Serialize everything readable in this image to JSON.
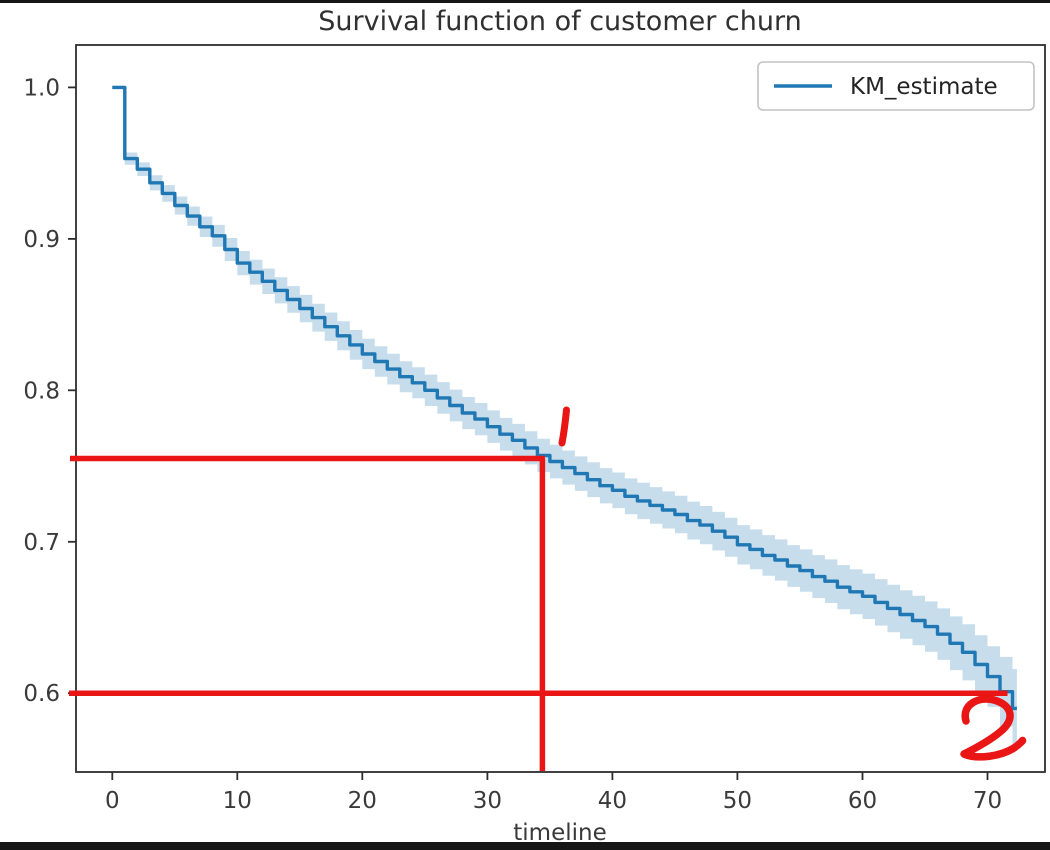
{
  "chart_data": {
    "type": "line",
    "title": "Survival function of customer churn",
    "xlabel": "timeline",
    "ylabel": "",
    "grid": false,
    "legend_position": "upper right",
    "legend": [
      {
        "label": "KM_estimate",
        "color": "#1f77b4"
      }
    ],
    "xlim": [
      -2.9,
      74.6
    ],
    "ylim": [
      0.548,
      1.028
    ],
    "x_ticks": [
      {
        "label": "0",
        "value": 0
      },
      {
        "label": "10",
        "value": 10
      },
      {
        "label": "20",
        "value": 20
      },
      {
        "label": "30",
        "value": 30
      },
      {
        "label": "40",
        "value": 40
      },
      {
        "label": "50",
        "value": 50
      },
      {
        "label": "60",
        "value": 60
      },
      {
        "label": "70",
        "value": 70
      }
    ],
    "y_ticks": [
      {
        "label": "1.0",
        "value": 1.0
      },
      {
        "label": "0.9",
        "value": 0.9
      },
      {
        "label": "0.8",
        "value": 0.8
      },
      {
        "label": "0.7",
        "value": 0.7
      },
      {
        "label": "0.6",
        "value": 0.6
      }
    ],
    "series": [
      {
        "name": "KM_estimate",
        "style": "step",
        "color": "#1f77b4",
        "ci_opacity": 0.25,
        "points": [
          [
            0,
            1.0
          ],
          [
            1,
            0.953
          ],
          [
            2,
            0.946
          ],
          [
            3,
            0.937
          ],
          [
            4,
            0.93
          ],
          [
            5,
            0.922
          ],
          [
            6,
            0.915
          ],
          [
            7,
            0.908
          ],
          [
            8,
            0.902
          ],
          [
            9,
            0.893
          ],
          [
            10,
            0.884
          ],
          [
            11,
            0.878
          ],
          [
            12,
            0.872
          ],
          [
            13,
            0.866
          ],
          [
            14,
            0.86
          ],
          [
            15,
            0.854
          ],
          [
            16,
            0.848
          ],
          [
            17,
            0.842
          ],
          [
            18,
            0.836
          ],
          [
            19,
            0.83
          ],
          [
            20,
            0.824
          ],
          [
            21,
            0.819
          ],
          [
            22,
            0.814
          ],
          [
            23,
            0.809
          ],
          [
            24,
            0.805
          ],
          [
            25,
            0.8
          ],
          [
            26,
            0.795
          ],
          [
            27,
            0.79
          ],
          [
            28,
            0.785
          ],
          [
            29,
            0.781
          ],
          [
            30,
            0.776
          ],
          [
            31,
            0.771
          ],
          [
            32,
            0.767
          ],
          [
            33,
            0.762
          ],
          [
            34,
            0.757
          ],
          [
            35,
            0.753
          ],
          [
            36,
            0.749
          ],
          [
            37,
            0.745
          ],
          [
            38,
            0.741
          ],
          [
            39,
            0.737
          ],
          [
            40,
            0.734
          ],
          [
            41,
            0.73
          ],
          [
            42,
            0.727
          ],
          [
            43,
            0.724
          ],
          [
            44,
            0.721
          ],
          [
            45,
            0.718
          ],
          [
            46,
            0.714
          ],
          [
            47,
            0.711
          ],
          [
            48,
            0.707
          ],
          [
            49,
            0.703
          ],
          [
            50,
            0.698
          ],
          [
            51,
            0.695
          ],
          [
            52,
            0.691
          ],
          [
            53,
            0.688
          ],
          [
            54,
            0.684
          ],
          [
            55,
            0.681
          ],
          [
            56,
            0.677
          ],
          [
            57,
            0.674
          ],
          [
            58,
            0.67
          ],
          [
            59,
            0.667
          ],
          [
            60,
            0.664
          ],
          [
            61,
            0.66
          ],
          [
            62,
            0.656
          ],
          [
            63,
            0.652
          ],
          [
            64,
            0.648
          ],
          [
            65,
            0.644
          ],
          [
            66,
            0.639
          ],
          [
            67,
            0.633
          ],
          [
            68,
            0.627
          ],
          [
            69,
            0.619
          ],
          [
            70,
            0.611
          ],
          [
            71,
            0.601
          ],
          [
            72,
            0.59
          ]
        ],
        "ci_halfwidth": [
          [
            0,
            0.001
          ],
          [
            1,
            0.004
          ],
          [
            5,
            0.006
          ],
          [
            10,
            0.008
          ],
          [
            20,
            0.01
          ],
          [
            34,
            0.011
          ],
          [
            50,
            0.013
          ],
          [
            60,
            0.015
          ],
          [
            66,
            0.017
          ],
          [
            70,
            0.02
          ],
          [
            72,
            0.026
          ]
        ]
      }
    ],
    "annotations": {
      "color": "#ea1515",
      "crosshair": {
        "x": 34.4,
        "y": 0.755
      },
      "hline_y": 0.6,
      "hline_x_end": 71.6,
      "marks": [
        {
          "text": "1"
        },
        {
          "text": "2"
        }
      ]
    }
  }
}
